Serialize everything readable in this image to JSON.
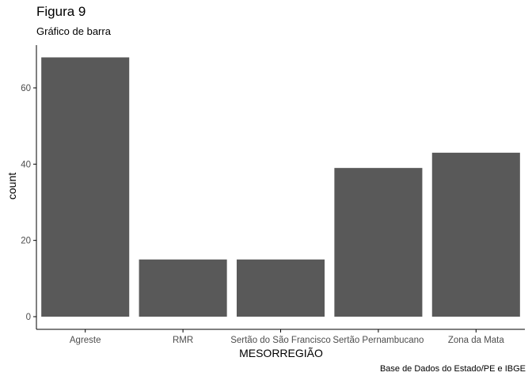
{
  "chart_data": {
    "type": "bar",
    "title": "Figura 9",
    "subtitle": "Gráfico de barra",
    "caption": "Base de Dados do Estado/PE e IBGE",
    "xlabel": "MESORREGIÃO",
    "ylabel": "count",
    "categories": [
      "Agreste",
      "RMR",
      "Sertão do São Francisco",
      "Sertão Pernambucano",
      "Zona da Mata"
    ],
    "values": [
      68,
      15,
      15,
      39,
      43
    ],
    "ylim": [
      0,
      71.4
    ],
    "yticks": [
      0,
      20,
      40,
      60
    ],
    "grid": false,
    "legend": "none",
    "bar_color": "#595959",
    "axis_color": "#000000",
    "tick_label_color": "#4d4d4d"
  }
}
